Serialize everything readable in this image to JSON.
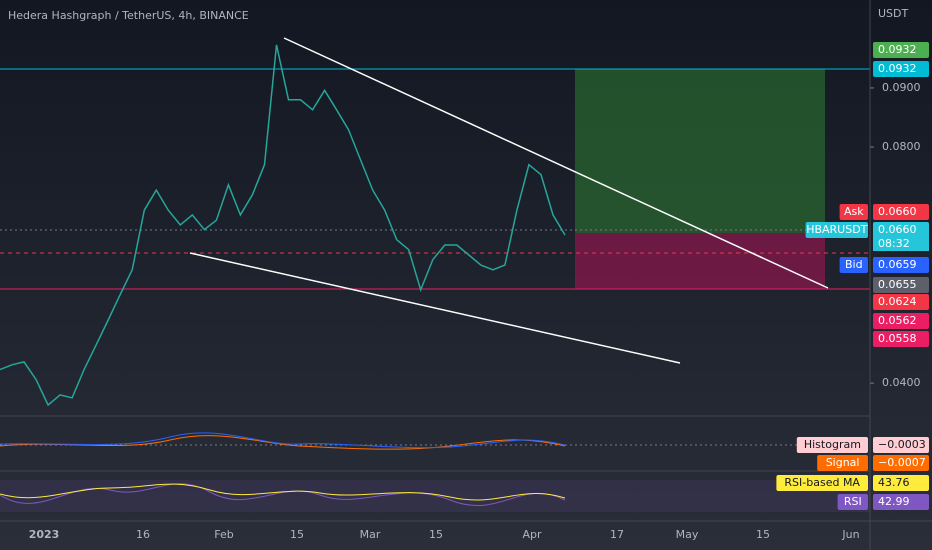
{
  "header": {
    "title": "Hedera Hashgraph / TetherUS, 4h, BINANCE",
    "currency": "USDT"
  },
  "chart_data": {
    "type": "line",
    "color": "#26a69a",
    "values": [
      0.0423,
      0.0431,
      0.0436,
      0.0406,
      0.0363,
      0.038,
      0.0375,
      0.0423,
      0.0465,
      0.0507,
      0.055,
      0.0592,
      0.0693,
      0.0727,
      0.0693,
      0.0668,
      0.0685,
      0.066,
      0.0676,
      0.0736,
      0.0685,
      0.0719,
      0.077,
      0.0973,
      0.088,
      0.088,
      0.0863,
      0.0896,
      0.0863,
      0.0829,
      0.0778,
      0.0727,
      0.0693,
      0.0643,
      0.0626,
      0.0558,
      0.0609,
      0.0634,
      0.0634,
      0.0617,
      0.06,
      0.0592,
      0.06,
      0.0693,
      0.077,
      0.0753,
      0.0685,
      0.0651
    ],
    "ylim": [
      0.0346,
      0.1049
    ],
    "yticks": [
      {
        "value": 0.09,
        "label": "0.0900"
      },
      {
        "value": 0.08,
        "label": "0.0800"
      },
      {
        "value": 0.04,
        "label": "0.0400"
      }
    ],
    "xcategories": [
      "2023",
      "16",
      "Feb",
      "15",
      "Mar",
      "15",
      "Apr",
      "17",
      "May",
      "15",
      "Jun"
    ]
  },
  "price_tags": [
    {
      "label": null,
      "value": "0.0932",
      "color": "#4caf50"
    },
    {
      "label": null,
      "value": "0.0932",
      "color": "#00bcd4"
    },
    {
      "label": "Ask",
      "value": "0.0660",
      "color": "#f23645"
    },
    {
      "label": "HBARUSDT",
      "value": "0.0660",
      "color": "#26c6da",
      "extra": "08:32"
    },
    {
      "label": "Bid",
      "value": "0.0659",
      "color": "#2962ff"
    },
    {
      "label": null,
      "value": "0.0655",
      "color": "#5d606b"
    },
    {
      "label": null,
      "value": "0.0624",
      "color": "#f23645"
    },
    {
      "label": null,
      "value": "0.0562",
      "color": "#e91e63"
    },
    {
      "label": null,
      "value": "0.0558",
      "color": "#e91e63"
    }
  ],
  "indicators": [
    {
      "label": "Histogram",
      "value": "−0.0003",
      "color": "#ffcdd2"
    },
    {
      "label": "Signal",
      "value": "−0.0007",
      "color": "#ff6d00"
    },
    {
      "label": "RSI-based MA",
      "value": "43.76",
      "color": "#ffeb3b"
    },
    {
      "label": "RSI",
      "value": "42.99",
      "color": "#7e57c2"
    }
  ]
}
